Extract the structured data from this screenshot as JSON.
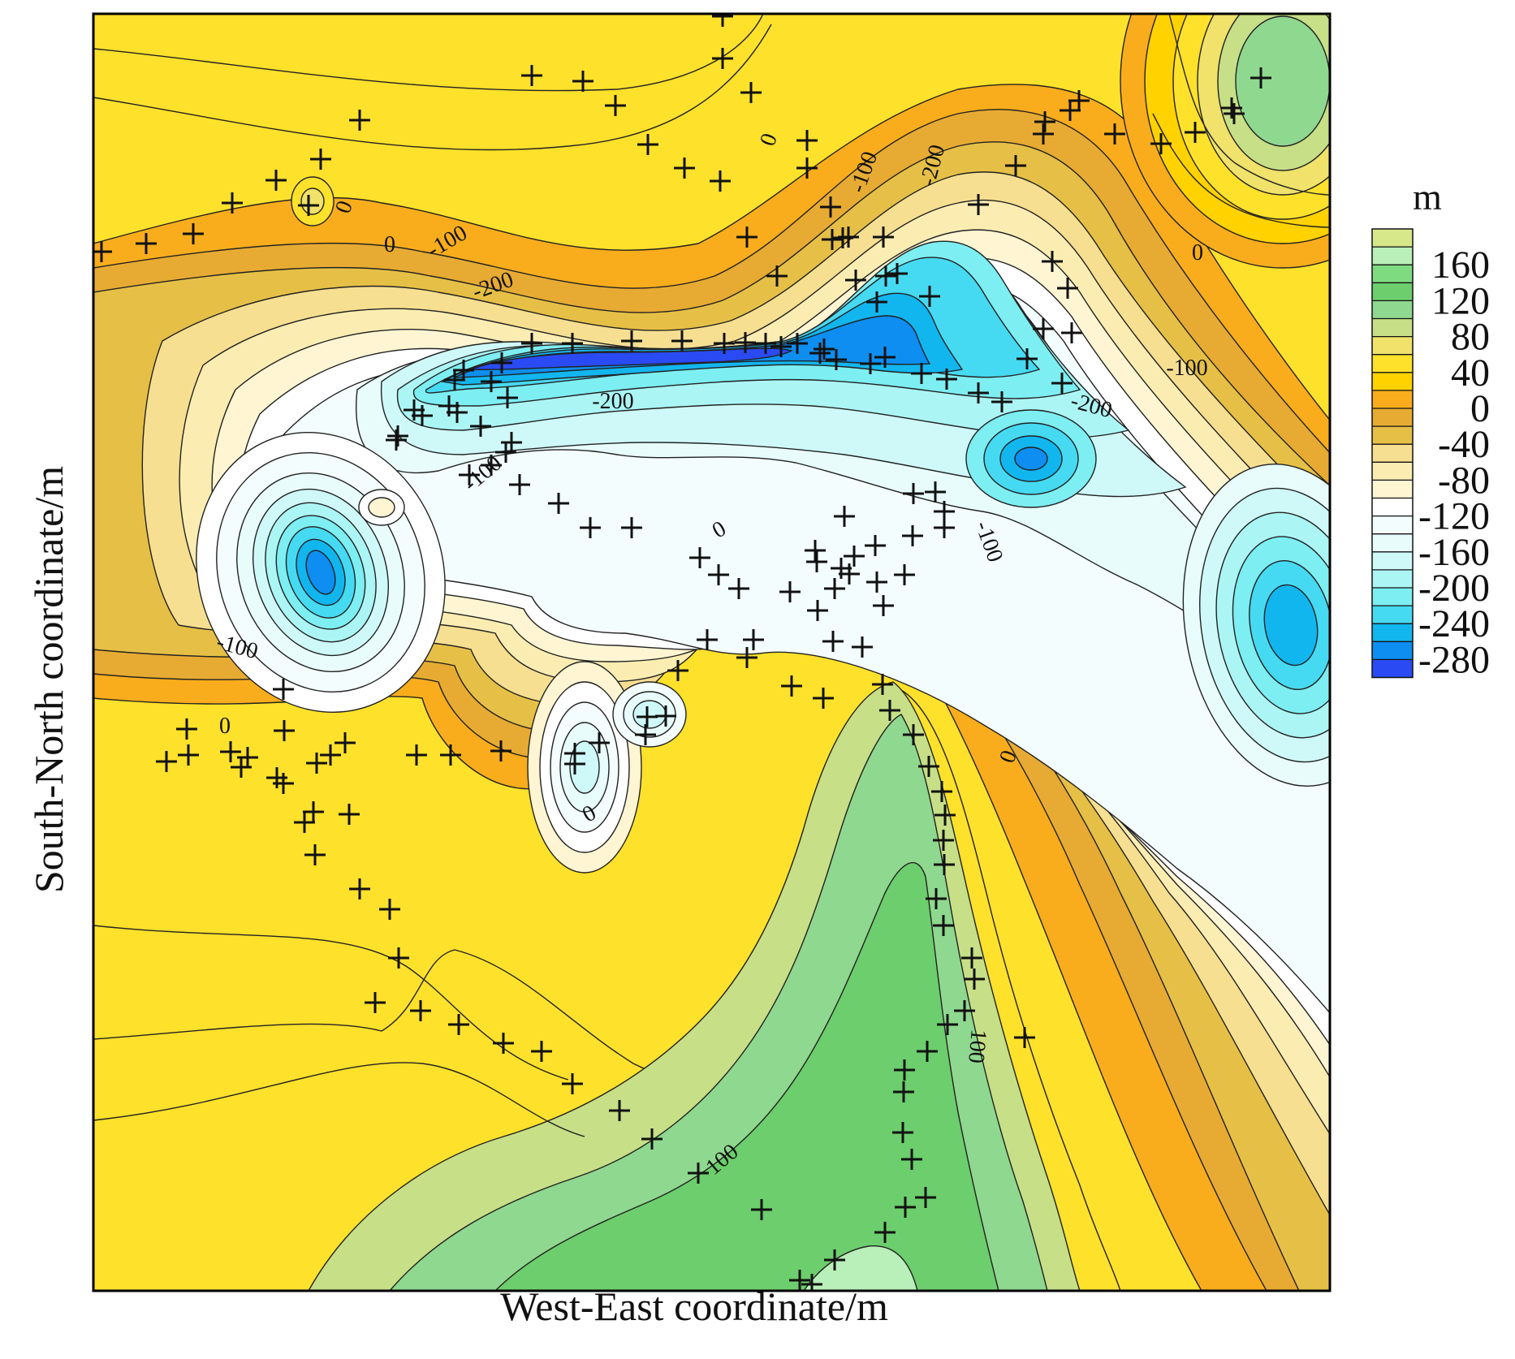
{
  "chart_data": {
    "type": "contour",
    "title": "",
    "xlabel": "West-East coordinate/m",
    "ylabel": "South-North coordinate/m",
    "colorbar": {
      "unit": "m",
      "tick_labels": [
        "160",
        "120",
        "80",
        "40",
        "0",
        "-40",
        "-80",
        "-120",
        "-160",
        "-200",
        "-240",
        "-280"
      ],
      "levels": [
        200,
        180,
        160,
        140,
        120,
        100,
        80,
        60,
        40,
        20,
        0,
        -20,
        -40,
        -60,
        -80,
        -100,
        -120,
        -140,
        -160,
        -180,
        -200,
        -220,
        -240,
        -260,
        -280,
        -300
      ],
      "colors": [
        "#d7e88a",
        "#b9efb9",
        "#7fdb80",
        "#6cce6c",
        "#8fd88f",
        "#c7df86",
        "#f0e26a",
        "#fde12b",
        "#ffd200",
        "#f9ad1c",
        "#e7ab33",
        "#e6c046",
        "#f6df91",
        "#fbedb2",
        "#fff5d2",
        "#ffffff",
        "#f4fdfd",
        "#e8fcfc",
        "#cff9f9",
        "#acf5f5",
        "#7deef2",
        "#46daf2",
        "#12b6ef",
        "#0d8ef0",
        "#2a4bf3"
      ]
    },
    "contour_labels": [
      "0",
      "0",
      "0",
      "0",
      "0",
      "0",
      "0",
      "0",
      "-100",
      "-100",
      "-100",
      "-100",
      "-100",
      "-100",
      "100",
      "100",
      "-200",
      "-200",
      "-200",
      "-200"
    ],
    "well_markers": "+",
    "grid": false,
    "legend": "right"
  }
}
